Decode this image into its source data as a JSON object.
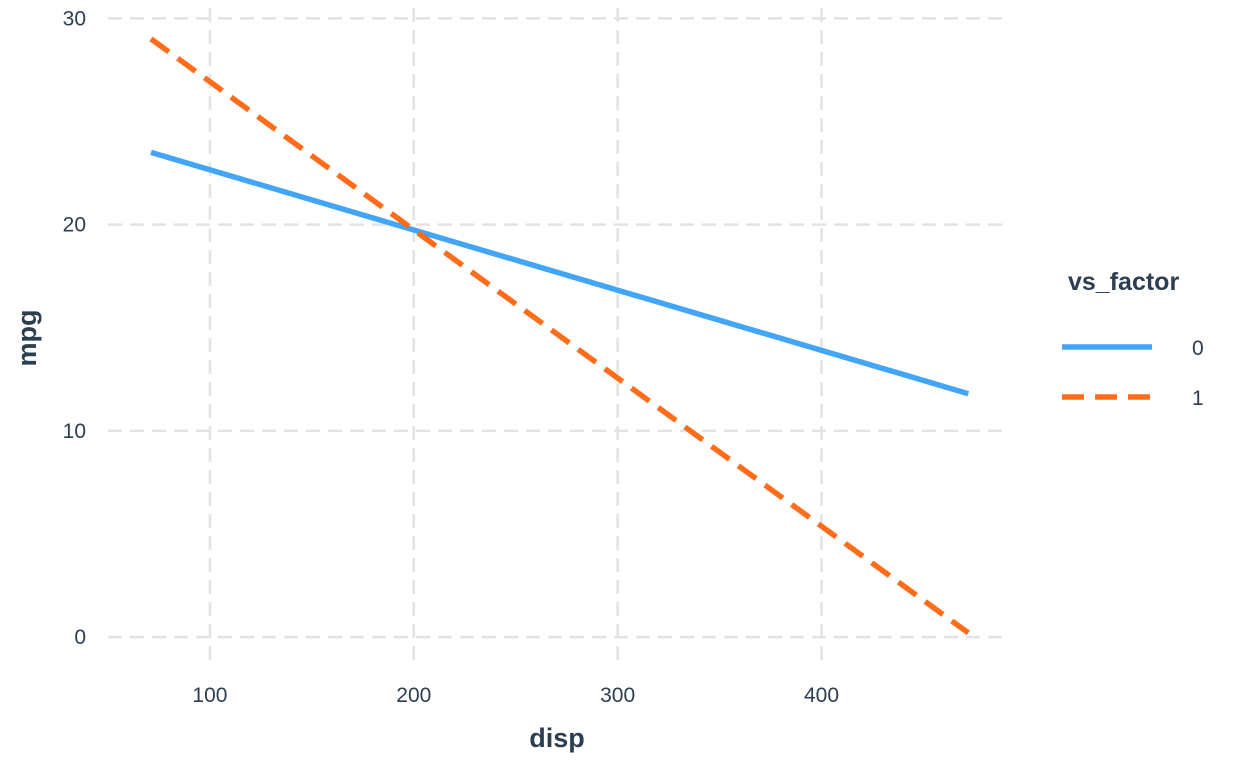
{
  "chart_data": {
    "type": "line",
    "title": "",
    "xlabel": "disp",
    "ylabel": "mpg",
    "xlim": [
      50,
      490
    ],
    "ylim": [
      -1.5,
      30.5
    ],
    "x_ticks": [
      100,
      200,
      300,
      400
    ],
    "y_ticks": [
      0,
      10,
      20,
      30
    ],
    "grid": true,
    "legend": {
      "title": "vs_factor",
      "position": "right"
    },
    "series": [
      {
        "name": "0",
        "color": "#42a5f5",
        "line_style": "solid",
        "x": [
          71.1,
          472
        ],
        "y": [
          23.5,
          11.8
        ]
      },
      {
        "name": "1",
        "color": "#ff6d1a",
        "line_style": "dashed",
        "x": [
          71.1,
          472
        ],
        "y": [
          29.0,
          0.2
        ]
      }
    ]
  }
}
